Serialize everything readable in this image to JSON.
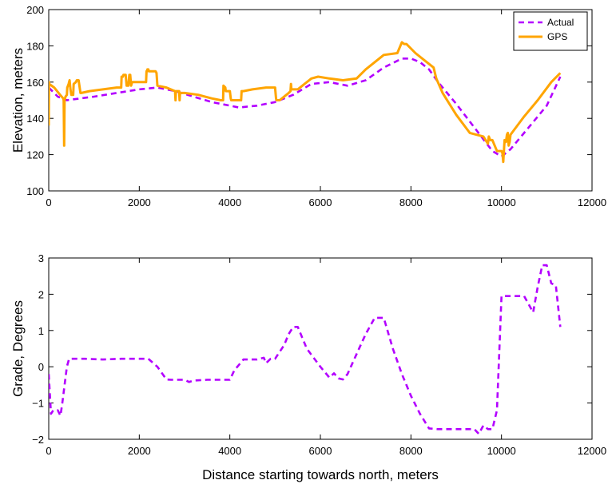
{
  "chart_data": [
    {
      "type": "line",
      "title": "",
      "xlabel": "",
      "ylabel": "Elevation, meters",
      "xlim": [
        0,
        12000
      ],
      "ylim": [
        100,
        200
      ],
      "xticks": [
        0,
        2000,
        4000,
        6000,
        8000,
        10000,
        12000
      ],
      "yticks": [
        100,
        120,
        140,
        160,
        180,
        200
      ],
      "xtick_labels": [
        "0",
        "2000",
        "4000",
        "6000",
        "8000",
        "10000",
        "12000"
      ],
      "ytick_labels": [
        "100",
        "120",
        "140",
        "160",
        "180",
        "200"
      ],
      "grid": false,
      "legend": "top-right",
      "series": [
        {
          "name": "Actual",
          "color": "#b300ff",
          "style": "dashed",
          "x": [
            0,
            200,
            400,
            700,
            1000,
            1500,
            2000,
            2400,
            2800,
            3200,
            3600,
            4000,
            4200,
            4600,
            5000,
            5400,
            5800,
            6200,
            6600,
            7000,
            7400,
            7800,
            8000,
            8200,
            8400,
            8600,
            9000,
            9400,
            9800,
            10000,
            10200,
            10600,
            11000,
            11300
          ],
          "y": [
            157,
            152,
            150,
            151,
            152,
            154,
            156,
            157,
            155,
            152,
            149,
            147,
            146,
            147,
            149,
            153,
            159,
            160,
            158,
            161,
            168,
            173,
            173,
            171,
            167,
            160,
            148,
            135,
            122,
            119,
            123,
            135,
            147,
            163
          ]
        },
        {
          "name": "GPS",
          "color": "#ffa500",
          "style": "solid",
          "x": [
            0,
            5,
            10,
            120,
            250,
            320,
            330,
            340,
            350,
            370,
            400,
            410,
            440,
            460,
            480,
            500,
            540,
            550,
            600,
            620,
            660,
            700,
            720,
            900,
            1200,
            1500,
            1600,
            1610,
            1640,
            1650,
            1700,
            1720,
            1760,
            1780,
            1800,
            1820,
            1840,
            1860,
            2100,
            2150,
            2160,
            2170,
            2180,
            2200,
            2210,
            2340,
            2360,
            2380,
            2400,
            2600,
            2790,
            2800,
            2810,
            2880,
            2890,
            2900,
            3000,
            3300,
            3600,
            3800,
            3850,
            3860,
            3900,
            3910,
            4000,
            4020,
            4030,
            4200,
            4250,
            4260,
            4300,
            4500,
            4800,
            5000,
            5020,
            5030,
            5100,
            5300,
            5340,
            5350,
            5360,
            5500,
            5800,
            5950,
            6200,
            6500,
            6800,
            7000,
            7400,
            7700,
            7800,
            7850,
            7900,
            8100,
            8300,
            8500,
            8550,
            8560,
            8700,
            9000,
            9300,
            9600,
            9700,
            9720,
            9750,
            9800,
            9900,
            10000,
            10020,
            10040,
            10060,
            10070,
            10100,
            10120,
            10140,
            10160,
            10180,
            10200,
            10500,
            10800,
            11100,
            11300
          ],
          "y": [
            136,
            160,
            159,
            157,
            153,
            151,
            150,
            125,
            150,
            152,
            153,
            157,
            159,
            161,
            156,
            153,
            153,
            159,
            160,
            161,
            161,
            154,
            154,
            155,
            156,
            157,
            157,
            163,
            163,
            164,
            164,
            158,
            158,
            164,
            164,
            158,
            160,
            160,
            160,
            160,
            166,
            166,
            167,
            167,
            166,
            166,
            166,
            165,
            158,
            157,
            155,
            150,
            155,
            155,
            150,
            154,
            154,
            153,
            151,
            150,
            150,
            158,
            157,
            155,
            155,
            151,
            150,
            150,
            150,
            155,
            155,
            156,
            157,
            157,
            151,
            150,
            150,
            154,
            155,
            159,
            156,
            156,
            162,
            163,
            162,
            161,
            162,
            167,
            175,
            176,
            182,
            181,
            181,
            176,
            172,
            168,
            163,
            162,
            154,
            142,
            132,
            130,
            126,
            130,
            128,
            128,
            122,
            122,
            121,
            116,
            125,
            128,
            127,
            131,
            132,
            125,
            127,
            131,
            141,
            150,
            160,
            165
          ]
        }
      ]
    },
    {
      "type": "line",
      "title": "",
      "xlabel": "Distance starting towards north, meters",
      "ylabel": "Grade, Degrees",
      "xlim": [
        0,
        12000
      ],
      "ylim": [
        -2,
        3
      ],
      "xticks": [
        0,
        2000,
        4000,
        6000,
        8000,
        10000,
        12000
      ],
      "yticks": [
        -2,
        -1,
        0,
        1,
        2,
        3
      ],
      "xtick_labels": [
        "0",
        "2000",
        "4000",
        "6000",
        "8000",
        "10000",
        "12000"
      ],
      "ytick_labels": [
        "−2",
        "−1",
        "0",
        "1",
        "2",
        "3"
      ],
      "grid": false,
      "legend": "none",
      "series": [
        {
          "color": "#b300ff",
          "style": "dashed",
          "x": [
            0,
            50,
            100,
            200,
            260,
            300,
            400,
            450,
            800,
            1200,
            1600,
            2000,
            2200,
            2400,
            2600,
            2700,
            3000,
            3100,
            3200,
            3500,
            4000,
            4100,
            4300,
            4600,
            4750,
            4800,
            4900,
            5000,
            5200,
            5300,
            5400,
            5500,
            5700,
            6000,
            6200,
            6300,
            6400,
            6500,
            6600,
            6800,
            7000,
            7200,
            7400,
            7600,
            7800,
            8000,
            8200,
            8400,
            8600,
            9000,
            9400,
            9500,
            9600,
            9700,
            9800,
            9900,
            10000,
            10100,
            10500,
            10700,
            10800,
            10900,
            11000,
            11100,
            11200,
            11300
          ],
          "y": [
            -0.2,
            -1.3,
            -1.2,
            -1.2,
            -1.35,
            -1.0,
            0.0,
            0.22,
            0.22,
            0.2,
            0.22,
            0.22,
            0.22,
            0.0,
            -0.35,
            -0.36,
            -0.36,
            -0.42,
            -0.38,
            -0.36,
            -0.36,
            -0.1,
            0.2,
            0.2,
            0.25,
            0.1,
            0.22,
            0.22,
            0.6,
            0.9,
            1.1,
            1.1,
            0.5,
            0.0,
            -0.3,
            -0.18,
            -0.32,
            -0.35,
            -0.2,
            0.35,
            0.9,
            1.35,
            1.35,
            0.5,
            -0.2,
            -0.8,
            -1.3,
            -1.7,
            -1.72,
            -1.72,
            -1.72,
            -1.85,
            -1.62,
            -1.72,
            -1.72,
            -1.2,
            1.95,
            1.95,
            1.95,
            1.5,
            2.2,
            2.8,
            2.8,
            2.3,
            2.25,
            1.1
          ]
        }
      ]
    }
  ]
}
